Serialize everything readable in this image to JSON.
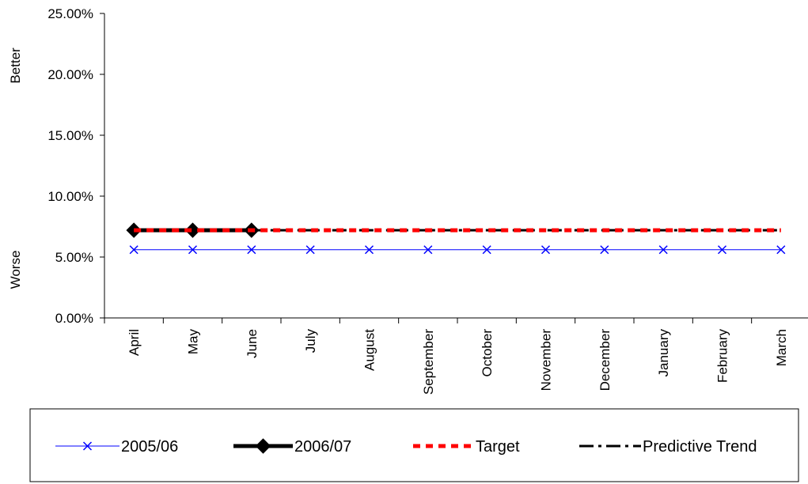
{
  "chart_data": {
    "type": "line",
    "categories": [
      "April",
      "May",
      "June",
      "July",
      "August",
      "September",
      "October",
      "November",
      "December",
      "January",
      "February",
      "March"
    ],
    "yticks": [
      "0.00%",
      "5.00%",
      "10.00%",
      "15.00%",
      "20.00%",
      "25.00%"
    ],
    "ylim": [
      0,
      25
    ],
    "y_side_labels": {
      "upper": "Better",
      "lower": "Worse"
    },
    "grid": false,
    "legend_position": "bottom",
    "series": [
      {
        "name": "2005/06",
        "color": "#0000FF",
        "marker": "x",
        "style": "solid-thin",
        "values": [
          5.6,
          5.6,
          5.6,
          5.6,
          5.6,
          5.6,
          5.6,
          5.6,
          5.6,
          5.6,
          5.6,
          5.6
        ]
      },
      {
        "name": "2006/07",
        "color": "#000000",
        "marker": "diamond",
        "style": "solid-thick",
        "values": [
          7.2,
          7.2,
          7.2,
          null,
          null,
          null,
          null,
          null,
          null,
          null,
          null,
          null
        ]
      },
      {
        "name": "Target",
        "color": "#FF0000",
        "marker": "none",
        "style": "dashed",
        "values": [
          7.2,
          7.2,
          7.2,
          7.2,
          7.2,
          7.2,
          7.2,
          7.2,
          7.2,
          7.2,
          7.2,
          7.2
        ]
      },
      {
        "name": "Predictive Trend",
        "color": "#000000",
        "marker": "none",
        "style": "dash-dot",
        "values": [
          null,
          null,
          7.2,
          7.2,
          7.2,
          7.2,
          7.2,
          7.2,
          7.2,
          7.2,
          7.2,
          7.2
        ]
      }
    ]
  }
}
